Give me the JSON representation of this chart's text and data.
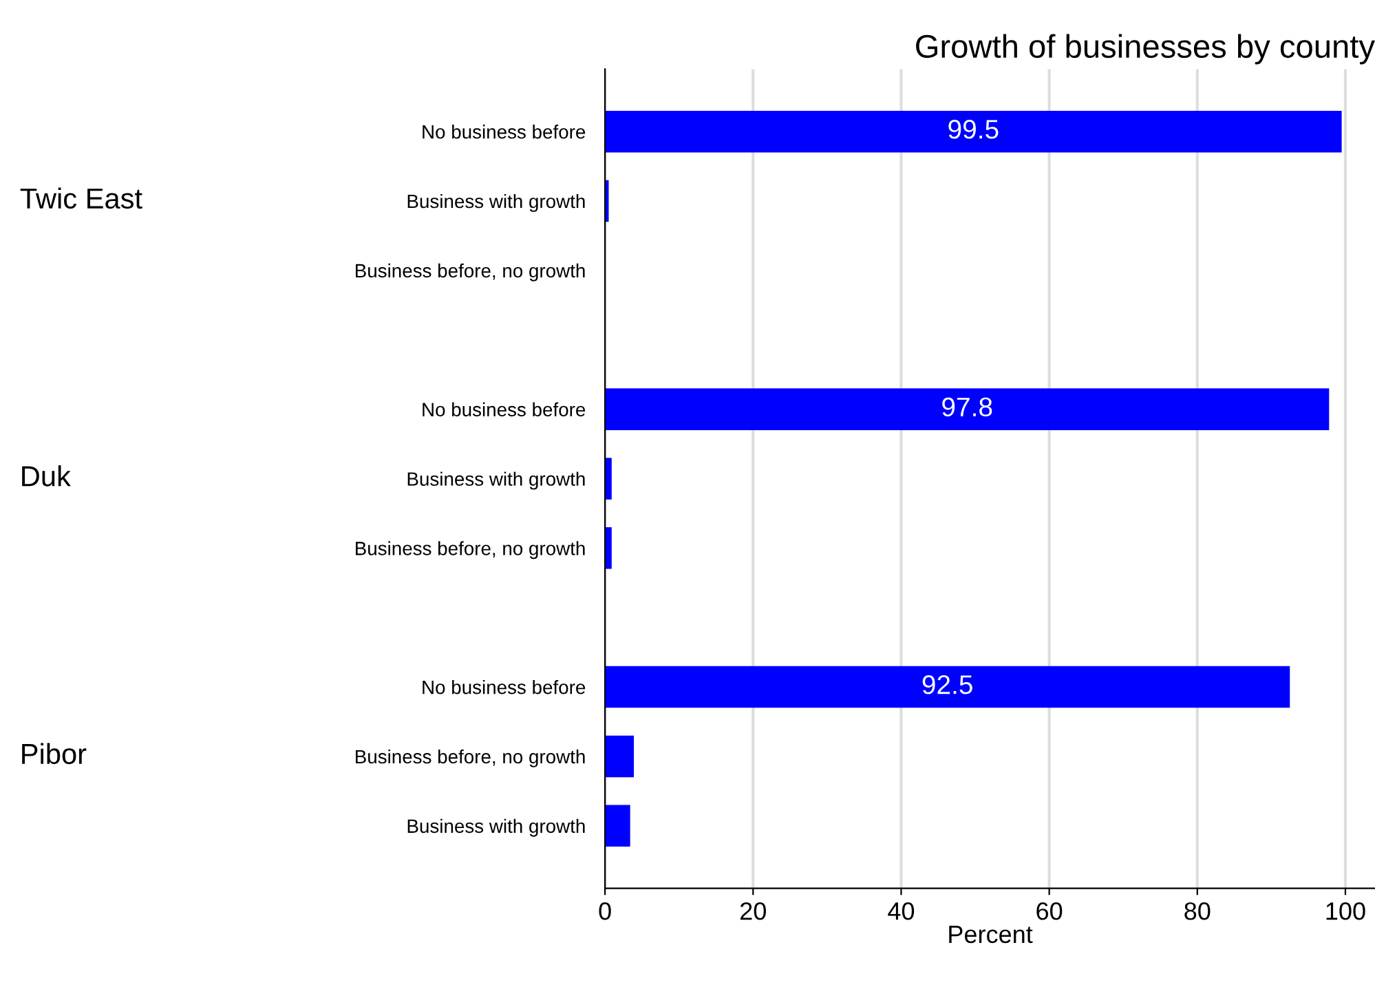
{
  "chart_data": {
    "type": "bar",
    "orientation": "horizontal",
    "title": "Growth of businesses by county",
    "xlabel": "Percent",
    "categories": [
      "No business before",
      "Business with growth",
      "Business before, no growth",
      "No business before",
      "Business with growth",
      "Business before, no growth",
      "No business before",
      "Business before, no growth",
      "Business with growth"
    ],
    "values": [
      99.5,
      0.5,
      0,
      97.8,
      0.9,
      0.9,
      92.5,
      3.9,
      3.4
    ],
    "value_labels": [
      "99.5",
      null,
      null,
      "97.8",
      null,
      null,
      "92.5",
      null,
      null
    ],
    "color": "#0000ff",
    "annotations": [
      "Twic East",
      "Duk",
      "Pibor"
    ],
    "xlim": [
      0,
      104
    ],
    "xticks": [
      0,
      20,
      40,
      60,
      80,
      100
    ],
    "grid": "x"
  }
}
